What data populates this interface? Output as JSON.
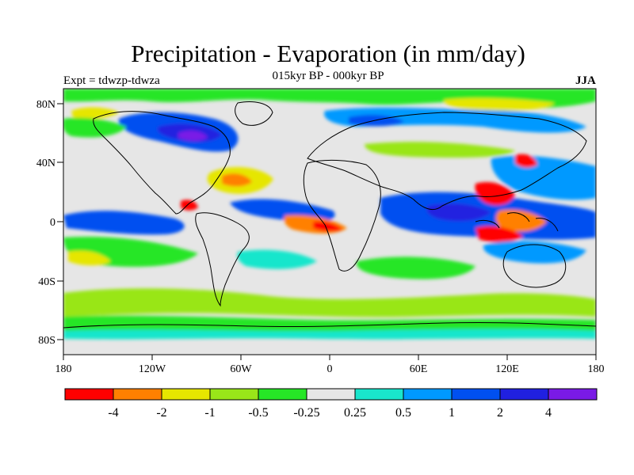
{
  "header": {
    "title": "Precipitation - Evaporation (in mm/day)",
    "subtitle": "015kyr BP - 000kyr BP",
    "experiment": "Expt = tdwzp-tdwza",
    "season": "JJA"
  },
  "map": {
    "projection": "cylindrical equidistant",
    "lon_range": [
      -180,
      180
    ],
    "lat_range": [
      -90,
      90
    ],
    "lat_ticks": [
      {
        "value": 80,
        "label": "80N"
      },
      {
        "value": 40,
        "label": "40N"
      },
      {
        "value": 0,
        "label": "0"
      },
      {
        "value": -40,
        "label": "40S"
      },
      {
        "value": -80,
        "label": "80S"
      }
    ],
    "lon_ticks": [
      {
        "value": -180,
        "label": "180"
      },
      {
        "value": -120,
        "label": "120W"
      },
      {
        "value": -60,
        "label": "60W"
      },
      {
        "value": 0,
        "label": "0"
      },
      {
        "value": 60,
        "label": "60E"
      },
      {
        "value": 120,
        "label": "120E"
      },
      {
        "value": 180,
        "label": "180"
      }
    ],
    "background_color": "#e6e6e6"
  },
  "colorbar": {
    "colors": [
      "#ff0000",
      "#ff8000",
      "#e6e600",
      "#99e619",
      "#26e626",
      "#e6e6e6",
      "#19e6cc",
      "#0099ff",
      "#0050f0",
      "#2020e0",
      "#7a1ae6"
    ],
    "labels": [
      "-4",
      "-2",
      "-1",
      "-0.5",
      "-0.25",
      "0.25",
      "0.5",
      "1",
      "2",
      "4"
    ]
  }
}
